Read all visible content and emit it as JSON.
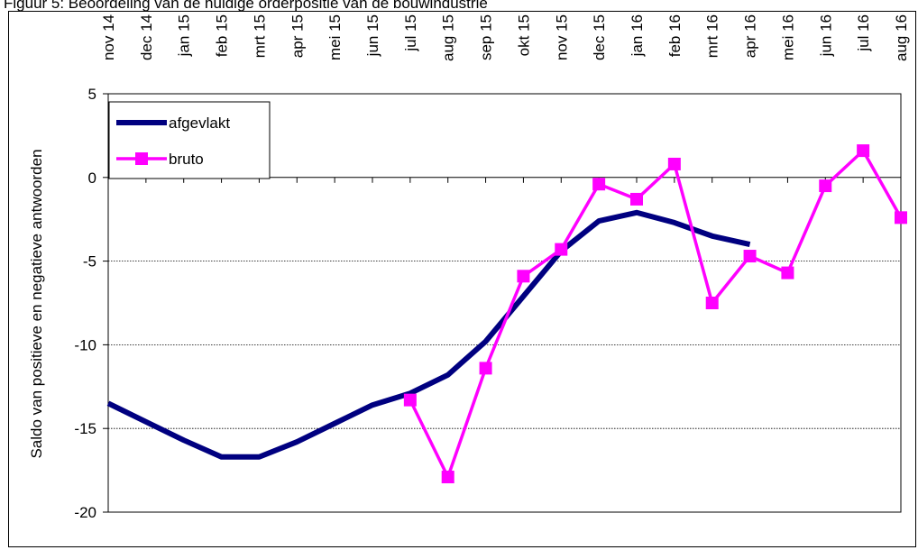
{
  "caption": "Figuur 5: Beoordeling van de huidige orderpositie van de bouwindustrie",
  "chart_data": {
    "type": "line",
    "categories": [
      "nov 14",
      "dec 14",
      "jan 15",
      "feb 15",
      "mrt 15",
      "apr 15",
      "mei 15",
      "jun 15",
      "jul 15",
      "aug 15",
      "sep 15",
      "okt 15",
      "nov 15",
      "dec 15",
      "jan 16",
      "feb 16",
      "mrt 16",
      "apr 16",
      "mei 16",
      "jun 16",
      "jul 16",
      "aug 16"
    ],
    "ylabel": "Saldo van positieve en negatieve antwoorden",
    "xlabel": "",
    "ylim": [
      -20,
      5
    ],
    "yticks": [
      5,
      0,
      -5,
      -10,
      -15,
      -20
    ],
    "gridlines_y": [
      -5,
      -10,
      -15
    ],
    "legend_position": "top-left",
    "series": [
      {
        "name": "afgevlakt",
        "color": "#000080",
        "marker": "none",
        "values": [
          -13.5,
          -14.6,
          -15.7,
          -16.7,
          -16.7,
          -15.8,
          -14.7,
          -13.6,
          -12.9,
          -11.8,
          -9.8,
          -7.1,
          -4.4,
          -2.6,
          -2.1,
          -2.7,
          -3.5,
          -4.0,
          null,
          null,
          null,
          null
        ]
      },
      {
        "name": "bruto",
        "color": "#ff00ff",
        "marker": "square",
        "values": [
          null,
          null,
          null,
          null,
          null,
          null,
          null,
          null,
          -13.3,
          -17.9,
          -11.4,
          -5.9,
          -4.3,
          -0.4,
          -1.3,
          0.8,
          -7.5,
          -4.7,
          -5.7,
          -0.5,
          1.6,
          -2.4
        ]
      }
    ]
  }
}
